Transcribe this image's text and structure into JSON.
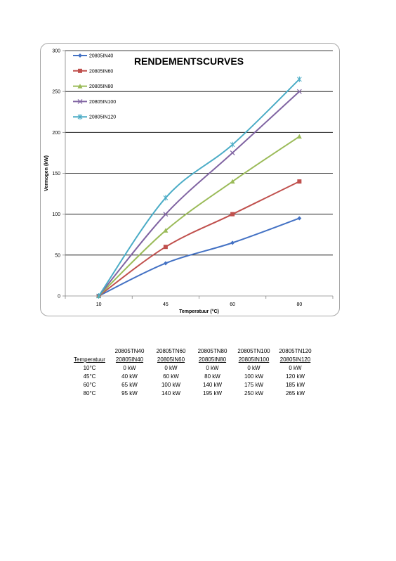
{
  "chart_data": {
    "type": "line",
    "title": "RENDEMENTSCURVES",
    "xlabel": "Temperatuur (°C)",
    "ylabel": "Vermogen (kW)",
    "categories": [
      "10",
      "45",
      "60",
      "80"
    ],
    "ylim": [
      0,
      300
    ],
    "yticks": [
      0,
      50,
      100,
      150,
      200,
      250,
      300
    ],
    "grid": true,
    "legend_position": "top-left",
    "series": [
      {
        "name": "20805IN40",
        "values": [
          0,
          40,
          65,
          95
        ],
        "color": "#4472c4",
        "marker": "diamond"
      },
      {
        "name": "20805IN60",
        "values": [
          0,
          60,
          100,
          140
        ],
        "color": "#c0504d",
        "marker": "square"
      },
      {
        "name": "20805IN80",
        "values": [
          0,
          80,
          140,
          195
        ],
        "color": "#9bbb59",
        "marker": "triangle"
      },
      {
        "name": "20805IN100",
        "values": [
          0,
          100,
          175,
          250
        ],
        "color": "#8064a2",
        "marker": "x"
      },
      {
        "name": "20805IN120",
        "values": [
          0,
          120,
          185,
          265
        ],
        "color": "#4bacc6",
        "marker": "star"
      }
    ]
  },
  "table": {
    "header_top": [
      "",
      "20805TN40",
      "20805TN60",
      "20805TN80",
      "20805TN100",
      "20805TN120"
    ],
    "header_bottom": [
      "Temperatuur",
      "20805IN40",
      "20805IN60",
      "20805IN80",
      "20805IN100",
      "20805IN120"
    ],
    "rows": [
      [
        "10°C",
        "0 kW",
        "0 kW",
        "0 kW",
        "0 kW",
        "0 kW"
      ],
      [
        "45°C",
        "40 kW",
        "60 kW",
        "80 kW",
        "100 kW",
        "120 kW"
      ],
      [
        "60°C",
        "65 kW",
        "100 kW",
        "140 kW",
        "175 kW",
        "185 kW"
      ],
      [
        "80°C",
        "95 kW",
        "140 kW",
        "195 kW",
        "250 kW",
        "265 kW"
      ]
    ]
  }
}
